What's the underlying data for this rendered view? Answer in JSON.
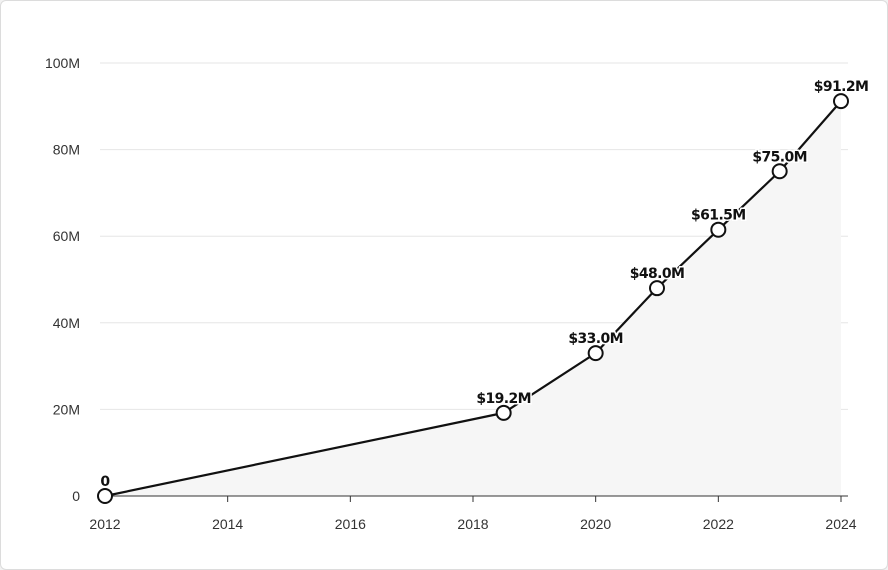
{
  "chart_data": {
    "type": "line",
    "title": "",
    "xlabel": "",
    "ylabel": "",
    "xlim": [
      2012,
      2024
    ],
    "ylim": [
      0,
      100000000
    ],
    "x_ticks": [
      "2012",
      "2014",
      "2016",
      "2018",
      "2020",
      "2022",
      "2024"
    ],
    "y_ticks": [
      "0",
      "20M",
      "40M",
      "60M",
      "80M",
      "100M"
    ],
    "grid": "horizontal",
    "area_fill": true,
    "series": [
      {
        "x": [
          2012,
          2018.5,
          2020,
          2021,
          2022,
          2023,
          2024
        ],
        "y": [
          0,
          19200000,
          33000000,
          48000000,
          61500000,
          75000000,
          91200000
        ],
        "labels": [
          "0",
          "$19.2M",
          "$33.0M",
          "$48.0M",
          "$61.5M",
          "$75.0M",
          "$91.2M"
        ]
      }
    ],
    "colors": {
      "line": "#111111",
      "area": "#f6f6f6",
      "marker_fill": "#ffffff",
      "grid": "#e6e6e6",
      "axis": "#333333"
    }
  }
}
